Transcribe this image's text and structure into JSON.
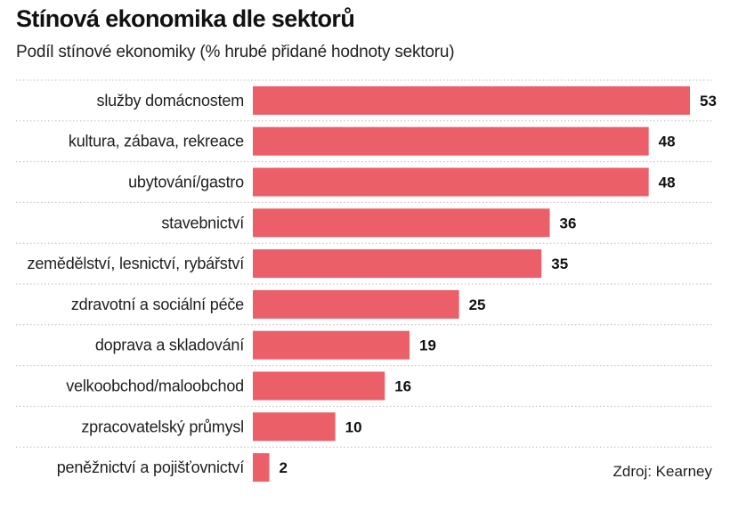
{
  "colors": {
    "bar": "#eb5f68",
    "divider": "#bdbdbd",
    "text": "#1f1f1f"
  },
  "chart_data": {
    "type": "bar",
    "orientation": "horizontal",
    "title": "Stínová ekonomika dle sektorů",
    "subtitle": "Podíl stínové ekonomiky (% hrubé přidané hodnoty sektoru)",
    "categories": [
      "služby domácnostem",
      "kultura, zábava, rekreace",
      "ubytování/gastro",
      "stavebnictví",
      "zemědělství, lesnictví, rybářství",
      "zdravotní a sociální péče",
      "doprava a skladování",
      "velkoobchod/maloobchod",
      "zpracovatelský průmysl",
      "peněžnictví a pojišťovnictví"
    ],
    "values": [
      53,
      48,
      48,
      36,
      35,
      25,
      19,
      16,
      10,
      2
    ],
    "value_labels": [
      "53",
      "48",
      "48",
      "36",
      "35",
      "25",
      "19",
      "16",
      "10",
      "2"
    ],
    "xlim": [
      0,
      53
    ],
    "grid": false,
    "legend": "none",
    "source": "Zdroj: Kearney"
  }
}
